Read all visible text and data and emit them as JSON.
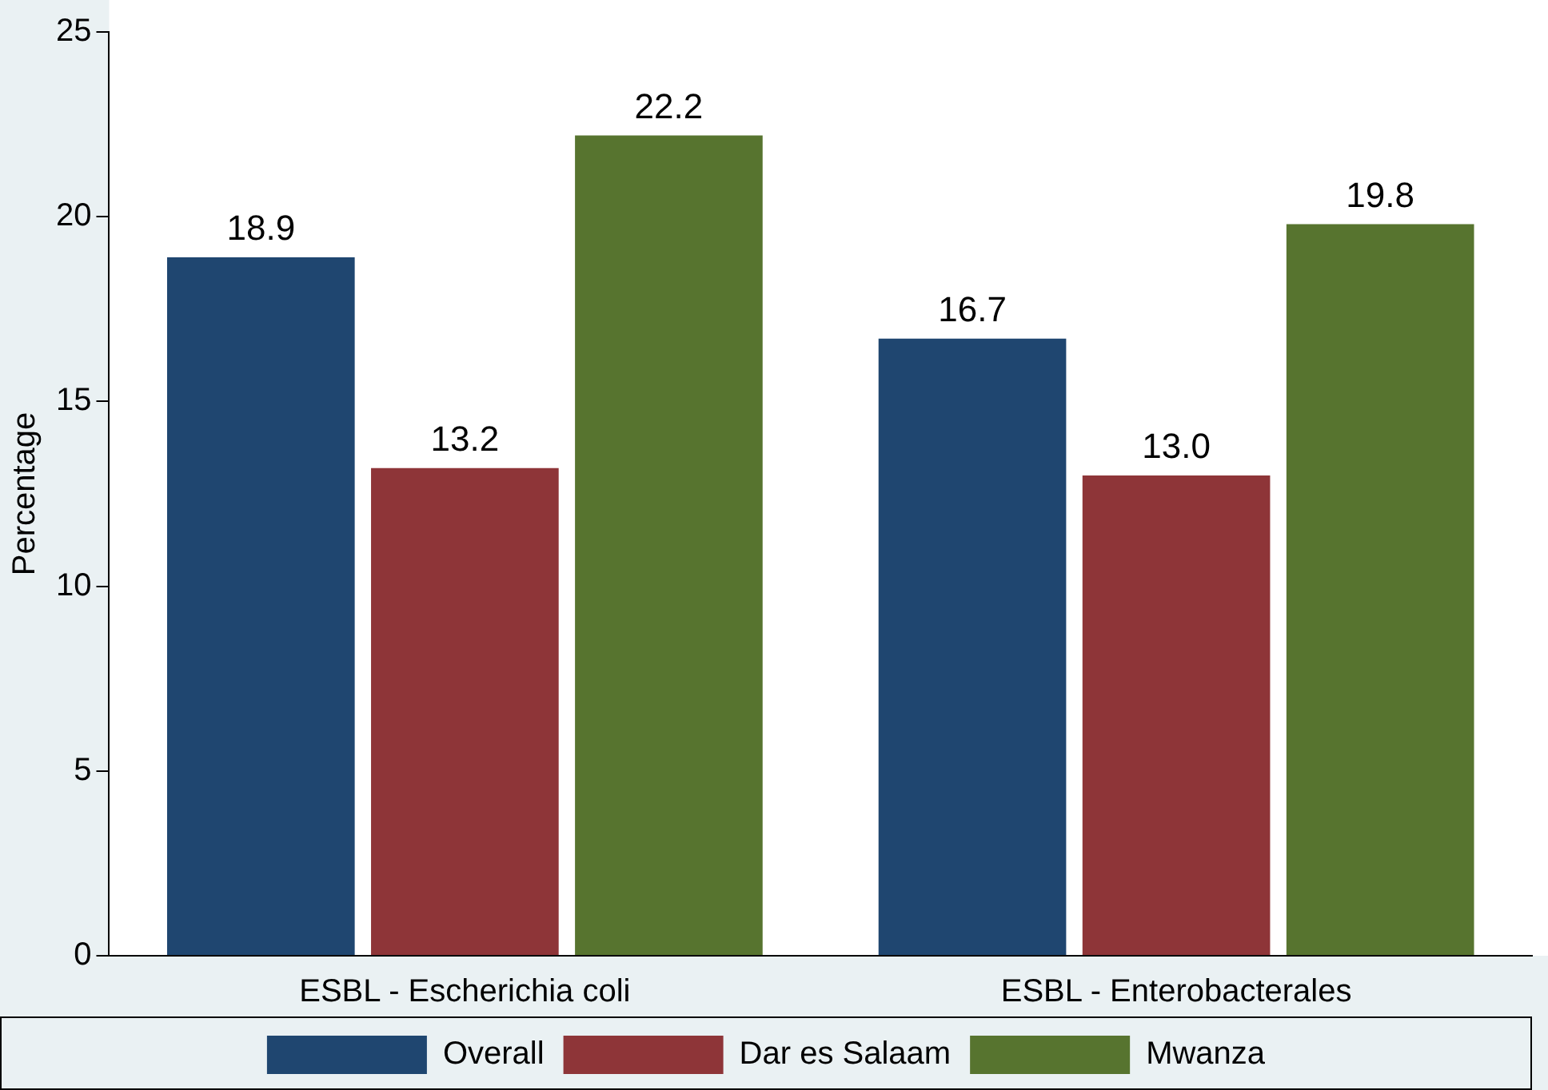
{
  "chart_data": {
    "type": "bar",
    "ylabel": "Percentage",
    "categories": [
      "ESBL - Escherichia coli",
      "ESBL - Enterobacterales"
    ],
    "series": [
      {
        "name": "Overall",
        "color": "#1f4670",
        "values": [
          18.9,
          16.7
        ]
      },
      {
        "name": "Dar es Salaam",
        "color": "#8e3538",
        "values": [
          13.2,
          13.0
        ]
      },
      {
        "name": "Mwanza",
        "color": "#57742f",
        "values": [
          22.2,
          19.8
        ]
      }
    ],
    "value_labels": [
      [
        "18.9",
        "16.7"
      ],
      [
        "13.2",
        "13.0"
      ],
      [
        "22.2",
        "19.8"
      ]
    ],
    "ylim": [
      0,
      25
    ],
    "yticks": [
      0,
      5,
      10,
      15,
      20,
      25
    ],
    "grid": false,
    "legend": "bottom"
  }
}
